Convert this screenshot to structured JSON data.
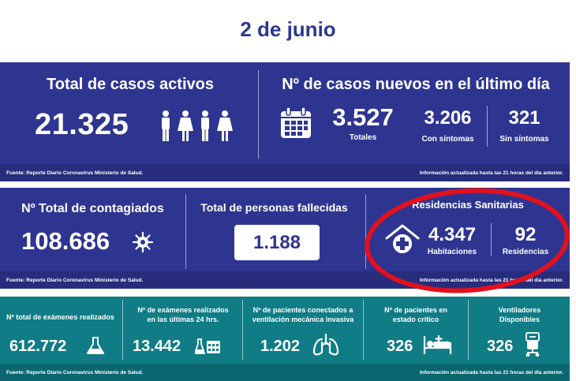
{
  "date": "2 de junio",
  "source_note": "Fuente: Reporte Diario Coronavirus Ministerio de Salud.",
  "update_note": "Información actualizada hasta las 21 horas  del día anterior.",
  "active": {
    "title": "Total de casos activos",
    "value": "21.325"
  },
  "new_cases": {
    "title": "Nº de casos nuevos en el último día",
    "total": "3.527",
    "total_label": "Totales",
    "symptoms": "3.206",
    "symptoms_label": "Con síntomas",
    "no_symptoms": "321",
    "no_symptoms_label": "Sin síntomas"
  },
  "infected": {
    "title": "Nº Total de contagiados",
    "value": "108.686"
  },
  "deaths": {
    "title": "Total de personas fallecidas",
    "value": "1.188"
  },
  "residences": {
    "title": "Residencias Sanitarias",
    "rooms": "4.347",
    "rooms_label": "Habitaciones",
    "count": "92",
    "count_label": "Residencias"
  },
  "tests_total": {
    "label": "Nº total de exámenes realizados",
    "value": "612.772"
  },
  "tests_24h": {
    "label_1": "Nº de exámenes realizados",
    "label_2": "en las últimas 24 hrs.",
    "value": "13.442"
  },
  "ventilated": {
    "label_1": "Nº de pacientes conectados a",
    "label_2": "ventilación mecánica invasiva",
    "value": "1.202"
  },
  "critical": {
    "label_1": "Nº de pacientes  en",
    "label_2": "estado crítico",
    "value": "326"
  },
  "ventilators": {
    "label_1": "Ventiladores",
    "label_2": "Disponibles",
    "value": "326"
  },
  "colors": {
    "navy": "#2e3590",
    "teal": "#0f7c86",
    "red": "#e3101d",
    "title": "#2b3990"
  }
}
